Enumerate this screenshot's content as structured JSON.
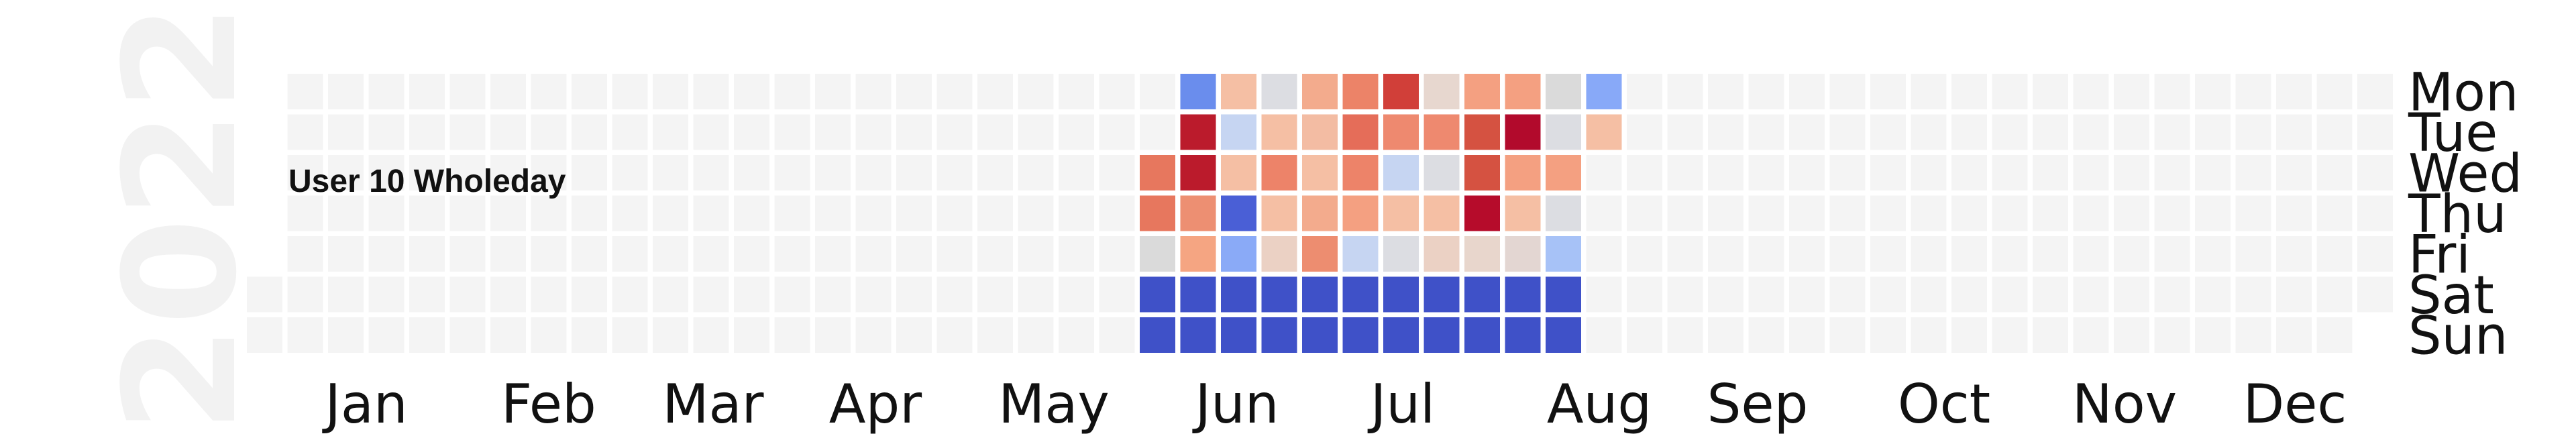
{
  "chart_data": {
    "type": "heatmap",
    "title": "User 10 Wholeday",
    "year": "2022",
    "month_labels": [
      "Jan",
      "Feb",
      "Mar",
      "Apr",
      "May",
      "Jun",
      "Jul",
      "Aug",
      "Sep",
      "Oct",
      "Nov",
      "Dec"
    ],
    "weekday_labels": [
      "Mon",
      "Tue",
      "Wed",
      "Thu",
      "Fri",
      "Sat",
      "Sun"
    ],
    "empty_color": "#f4f4f4",
    "grid_dims": {
      "weeks": 53,
      "days": 7
    },
    "first_week_index": 22,
    "weeks": [
      [
        "",
        "",
        "#e7775e",
        "#e7775e",
        "#dadada",
        "#3f51c8",
        "#3f51c8"
      ],
      [
        "#6a8ded",
        "#bb1b2c",
        "#bb1b2c",
        "#ed8f72",
        "#f5a582",
        "#3f51c8",
        "#3f51c8"
      ],
      [
        "#f5bfa4",
        "#c6d5f2",
        "#f5bfa4",
        "#4a5fd6",
        "#8aaaf7",
        "#3f51c8",
        "#3f51c8"
      ],
      [
        "#dcdde2",
        "#f5bfa4",
        "#ed8369",
        "#f5bfa4",
        "#ebd1c4",
        "#3f51c8",
        "#3f51c8"
      ],
      [
        "#f3ab8d",
        "#f3bca3",
        "#f5bfa4",
        "#f3ab8d",
        "#ed8d70",
        "#3f51c8",
        "#3f51c8"
      ],
      [
        "#ec8368",
        "#e56d59",
        "#ed8369",
        "#f4a081",
        "#c6d5f2",
        "#3f51c8",
        "#3f51c8"
      ],
      [
        "#d13f39",
        "#ee896f",
        "#c6d5f2",
        "#f5bfa4",
        "#dcdde2",
        "#3f51c8",
        "#3f51c8"
      ],
      [
        "#e7d7cf",
        "#ee896f",
        "#dcdde2",
        "#f5bfa4",
        "#ebd1c4",
        "#3f51c8",
        "#3f51c8"
      ],
      [
        "#f4a081",
        "#d55241",
        "#d55241",
        "#b60c2b",
        "#e8d6cc",
        "#3f51c8",
        "#3f51c8"
      ],
      [
        "#f4a081",
        "#b20a2c",
        "#f4a081",
        "#f5bfa4",
        "#e3d6d2",
        "#3f51c8",
        "#3f51c8"
      ],
      [
        "#dadada",
        "#dcdde2",
        "#f4a081",
        "#dcdde2",
        "#a7c2f7",
        "#3f51c8",
        "#3f51c8"
      ],
      [
        "#88a9f8",
        "#f5bfa4",
        "",
        "",
        "",
        "",
        ""
      ]
    ]
  }
}
